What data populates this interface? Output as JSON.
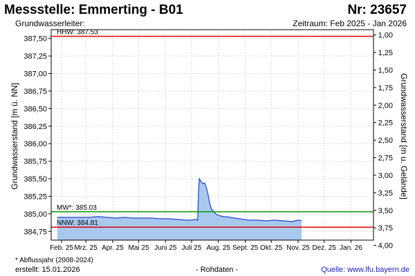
{
  "header": {
    "title": "Messstelle: Emmerting - B01",
    "nr": "Nr: 23657",
    "aquifer": "Grundwasserleiter:",
    "period": "Zeitraum: Feb 2025 - Jan 2026"
  },
  "footer": {
    "footnote": "* Abflussjahr (2008-2024)",
    "created": "erstellt:  15.01.2026",
    "rawdata": "- Rohdaten -",
    "source": "Quelle: www.lfu.bayern.de"
  },
  "chart_data": {
    "type": "area",
    "ylabel": "Grundwasserstand [m ü. NN]",
    "y2label": "Grundwasserstand [m u. Gelände]",
    "ylim": [
      384.625,
      387.625
    ],
    "yticks": [
      "387,50",
      "387,25",
      "387,00",
      "386,75",
      "386,50",
      "386,25",
      "386,00",
      "385,75",
      "385,50",
      "385,25",
      "385,00",
      "384,75"
    ],
    "yticks_values": [
      387.5,
      387.25,
      387.0,
      386.75,
      386.5,
      386.25,
      386.0,
      385.75,
      385.5,
      385.25,
      385.0,
      384.75
    ],
    "y2ticks": [
      "1,00",
      "1,25",
      "1,50",
      "1,75",
      "2,00",
      "2,25",
      "2,50",
      "2,75",
      "3,00",
      "3,25",
      "3,50",
      "3,75",
      "4,00"
    ],
    "y2ticks_values": [
      1.0,
      1.25,
      1.5,
      1.75,
      2.0,
      2.25,
      2.5,
      2.75,
      3.0,
      3.25,
      3.5,
      3.75,
      4.0
    ],
    "xlim": [
      "2025-01-20",
      "2026-01-27"
    ],
    "xticks": [
      "Feb. 25",
      "Mrz. 25",
      "Apr. 25",
      "Mai 25",
      "Juni 25",
      "Juli 25",
      "Aug. 25",
      "Sept. 25",
      "Okt. 25",
      "Nov. 25",
      "Dez. 25",
      "Jan. 26"
    ],
    "xticks_dates": [
      "2025-02-01",
      "2025-03-01",
      "2025-04-01",
      "2025-05-01",
      "2025-06-01",
      "2025-07-01",
      "2025-08-01",
      "2025-09-01",
      "2025-10-01",
      "2025-11-01",
      "2025-12-01",
      "2026-01-01"
    ],
    "grid": true,
    "reference_lines": [
      {
        "label": "HHW: 387.53",
        "value": 387.53,
        "color": "#e00000"
      },
      {
        "label": "MW*: 385.03",
        "value": 385.03,
        "color": "#009900"
      },
      {
        "label": "NNW: 384.81",
        "value": 384.81,
        "color": "#e00000"
      }
    ],
    "series": [
      {
        "color": "#1f3fd6",
        "fill": "#a9c8ee",
        "x": [
          "2025-01-27",
          "2025-02-05",
          "2025-02-15",
          "2025-02-25",
          "2025-03-05",
          "2025-03-15",
          "2025-03-25",
          "2025-04-05",
          "2025-04-15",
          "2025-04-25",
          "2025-05-05",
          "2025-05-15",
          "2025-05-25",
          "2025-06-05",
          "2025-06-15",
          "2025-06-25",
          "2025-07-01",
          "2025-07-05",
          "2025-07-08",
          "2025-07-09",
          "2025-07-10",
          "2025-07-12",
          "2025-07-14",
          "2025-07-16",
          "2025-07-18",
          "2025-07-20",
          "2025-07-22",
          "2025-07-24",
          "2025-07-27",
          "2025-07-30",
          "2025-08-03",
          "2025-08-08",
          "2025-08-15",
          "2025-08-25",
          "2025-09-05",
          "2025-09-15",
          "2025-09-25",
          "2025-10-05",
          "2025-10-15",
          "2025-10-25",
          "2025-11-01",
          "2025-11-05"
        ],
        "values": [
          384.95,
          384.95,
          384.95,
          384.95,
          384.95,
          384.96,
          384.95,
          384.94,
          384.95,
          384.94,
          384.94,
          384.94,
          384.93,
          384.93,
          384.92,
          384.91,
          384.91,
          384.92,
          384.91,
          385.3,
          385.5,
          385.46,
          385.43,
          385.44,
          385.38,
          385.28,
          385.15,
          385.07,
          385.02,
          384.99,
          384.97,
          384.96,
          384.95,
          384.93,
          384.91,
          384.91,
          384.9,
          384.91,
          384.9,
          384.89,
          384.91,
          384.9
        ]
      }
    ]
  }
}
